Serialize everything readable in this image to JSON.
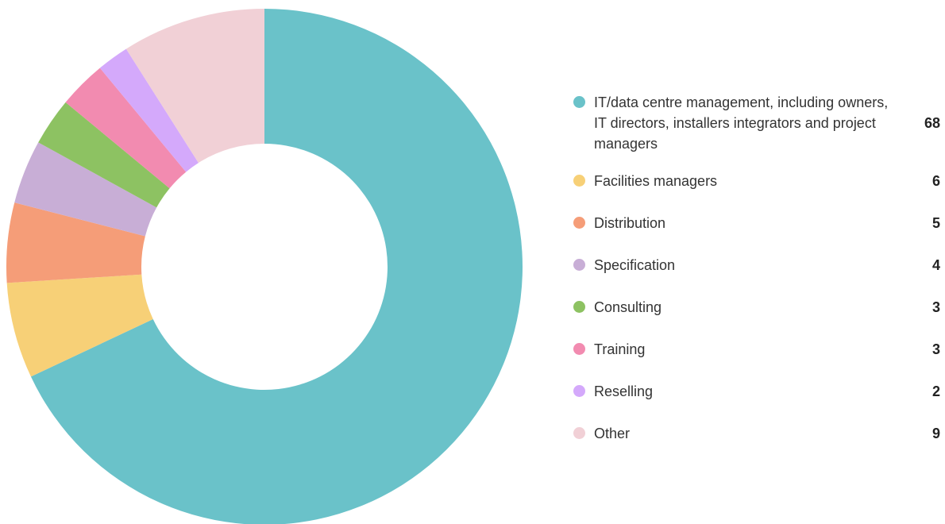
{
  "chart_data": {
    "type": "pie",
    "categories": [
      "IT/data centre management, including owners, IT directors, installers integrators and project managers",
      "Facilities managers",
      "Distribution",
      "Specification",
      "Consulting",
      "Training",
      "Reselling",
      "Other"
    ],
    "values": [
      68,
      6,
      5,
      4,
      3,
      3,
      2,
      9
    ],
    "colors": [
      "#6ac2c9",
      "#f7d077",
      "#f59d78",
      "#c8aed6",
      "#8dc262",
      "#f28bb0",
      "#d4a9fb",
      "#f1d0d6"
    ]
  }
}
